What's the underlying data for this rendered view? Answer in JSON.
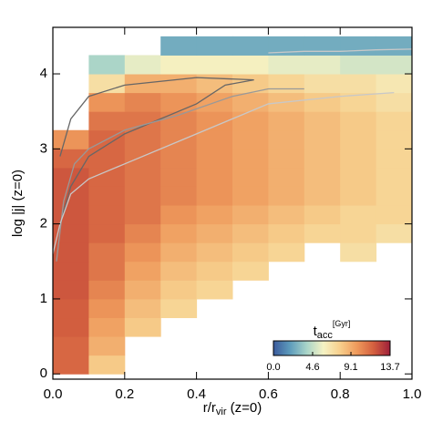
{
  "chart_data": {
    "type": "heatmap",
    "xlabel_parts": [
      "r/r",
      "vir",
      " (z=0)"
    ],
    "ylabel": "log |j| (z=0)",
    "xlim": [
      0,
      1
    ],
    "ylim": [
      -0.07,
      4.62
    ],
    "xticks": [
      {
        "value": 0,
        "label": "0.0"
      },
      0.2,
      0.4,
      0.6,
      0.8,
      {
        "value": 1,
        "label": "1.0"
      }
    ],
    "yticks": [
      0,
      1,
      2,
      3,
      4
    ],
    "xbins": [
      0,
      0.1,
      0.2,
      0.3,
      0.4,
      0.5,
      0.6,
      0.7,
      0.8,
      0.9,
      1.0
    ],
    "ybins": [
      0,
      0.25,
      0.5,
      0.75,
      1,
      1.25,
      1.5,
      1.75,
      2,
      2.25,
      2.5,
      2.75,
      3,
      3.25,
      3.5,
      3.75,
      4,
      4.25,
      4.5
    ],
    "values": [
      [
        11.5,
        8,
        null,
        null,
        null,
        null,
        null,
        null,
        null,
        null
      ],
      [
        11.5,
        9,
        null,
        null,
        null,
        null,
        null,
        null,
        null,
        null
      ],
      [
        11.8,
        9.5,
        8,
        null,
        null,
        null,
        null,
        null,
        null,
        null
      ],
      [
        11.8,
        10,
        8.5,
        7.5,
        null,
        null,
        null,
        null,
        null,
        null
      ],
      [
        12,
        10.5,
        9,
        8,
        7.5,
        null,
        null,
        null,
        null,
        null
      ],
      [
        12,
        11,
        9.5,
        8.5,
        8,
        7.5,
        null,
        null,
        null,
        null
      ],
      [
        12,
        11,
        10,
        9,
        8.5,
        8,
        7.5,
        null,
        7,
        null
      ],
      [
        12,
        11.5,
        10.5,
        9.5,
        9,
        8.5,
        8,
        7.5,
        7.5,
        7
      ],
      [
        12,
        11.5,
        11,
        10,
        9.5,
        9,
        8.5,
        8,
        7.5,
        7.5
      ],
      [
        12,
        11.5,
        11,
        10.5,
        10,
        9.5,
        9,
        8.5,
        8,
        7.5
      ],
      [
        12,
        11.5,
        11,
        10.5,
        10,
        9.5,
        9,
        8.5,
        8,
        7.5
      ],
      [
        11.5,
        11.5,
        11,
        10.5,
        10,
        9.5,
        9,
        8.5,
        8,
        7.5
      ],
      [
        10,
        11.5,
        11,
        10.5,
        10,
        9.5,
        9,
        8.5,
        8,
        7.5
      ],
      [
        null,
        11,
        11,
        10.5,
        10,
        9.5,
        9,
        8.5,
        8,
        7.5
      ],
      [
        null,
        10,
        10.5,
        10,
        9.5,
        9,
        8.5,
        8,
        7.5,
        7
      ],
      [
        null,
        7,
        9,
        9,
        8.5,
        8,
        7.5,
        7,
        7,
        6.5
      ],
      [
        null,
        4,
        5.5,
        6,
        6,
        6,
        5.5,
        5.5,
        5,
        5
      ],
      [
        null,
        null,
        null,
        2.5,
        2.5,
        2.5,
        2.5,
        2.5,
        2.5,
        2.5
      ]
    ],
    "colormap": [
      "#3a5a9c",
      "#5e9cbc",
      "#a8d4c8",
      "#f5f2c4",
      "#f7cf8c",
      "#ef9a5c",
      "#d4603f",
      "#9e1f3a"
    ],
    "clim": [
      0,
      13.7
    ],
    "colorbar_label_parts": [
      "t",
      "acc",
      "[Gyr]"
    ],
    "colorbar_ticks": [
      {
        "value": 0,
        "label": "0.0"
      },
      4.6,
      9.1,
      13.7
    ],
    "contours": [
      {
        "color": "#666666",
        "x": [
          0.02,
          0.05,
          0.1,
          0.2,
          0.4,
          0.56,
          0.48,
          0.4,
          0.3,
          0.2,
          0.1,
          0.05,
          0.02
        ],
        "y": [
          2.9,
          3.4,
          3.7,
          3.85,
          3.95,
          3.92,
          3.85,
          3.6,
          3.4,
          3.2,
          2.9,
          2.5,
          2.0
        ]
      },
      {
        "color": "#999999",
        "x": [
          0.01,
          0.03,
          0.06,
          0.1,
          0.2,
          0.35,
          0.5,
          0.6,
          0.7
        ],
        "y": [
          1.5,
          2.3,
          2.8,
          3.0,
          3.25,
          3.45,
          3.7,
          3.8,
          3.8
        ]
      },
      {
        "color": "#c8c8c8",
        "x": [
          0.0,
          0.02,
          0.05,
          0.1,
          0.2,
          0.35,
          0.5,
          0.6,
          0.8,
          0.95
        ],
        "y": [
          1.6,
          2.0,
          2.4,
          2.6,
          2.8,
          3.1,
          3.4,
          3.6,
          3.7,
          3.75
        ]
      },
      {
        "color": "#c8c8c8",
        "x": [
          0.6,
          0.7,
          0.8,
          0.9,
          1.0
        ],
        "y": [
          4.28,
          4.3,
          4.3,
          4.32,
          4.33
        ]
      }
    ]
  }
}
